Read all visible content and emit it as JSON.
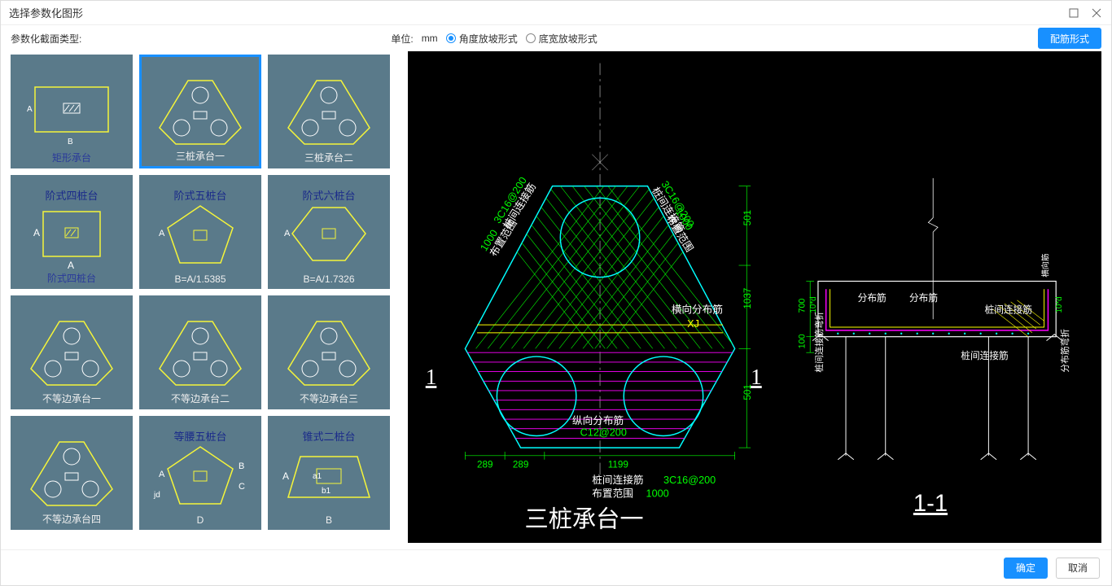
{
  "window": {
    "title": "选择参数化图形"
  },
  "toolbar": {
    "type_label": "参数化截面类型:",
    "unit_label": "单位:",
    "unit_value": "mm",
    "radio_angle": "角度放坡形式",
    "radio_width": "底宽放坡形式",
    "radio_selected": "angle",
    "rebar_button": "配筋形式"
  },
  "thumbnails": [
    {
      "id": "rect",
      "caption": "矩形承台",
      "caption_color": "blue",
      "shape": "rect"
    },
    {
      "id": "tri1",
      "caption": "三桩承台一",
      "caption_color": "white",
      "shape": "tri3",
      "selected": true
    },
    {
      "id": "tri2",
      "caption": "三桩承台二",
      "caption_color": "white",
      "shape": "tri3b"
    },
    {
      "id": "step4",
      "caption": "阶式四桩台",
      "caption_color": "blue",
      "shape": "square",
      "sub": "A",
      "note_top": "阶式四桩台"
    },
    {
      "id": "step5",
      "caption": "B=A/1.5385",
      "caption_color": "white",
      "shape": "pent",
      "note_top": "阶式五桩台"
    },
    {
      "id": "step6",
      "caption": "B=A/1.7326",
      "caption_color": "white",
      "shape": "hex",
      "note_top": "阶式六桩台"
    },
    {
      "id": "uneq1",
      "caption": "不等边承台一",
      "caption_color": "white",
      "shape": "tri3"
    },
    {
      "id": "uneq2",
      "caption": "不等边承台二",
      "caption_color": "white",
      "shape": "tri3b"
    },
    {
      "id": "uneq3",
      "caption": "不等边承台三",
      "caption_color": "white",
      "shape": "tri3b"
    },
    {
      "id": "uneq4",
      "caption": "不等边承台四",
      "caption_color": "white",
      "shape": "tri3"
    },
    {
      "id": "iso5",
      "caption": "D",
      "caption_color": "white",
      "shape": "pent",
      "note_top": "等腰五桩台",
      "side_labels": [
        "B",
        "C"
      ],
      "jd": "jd"
    },
    {
      "id": "cone2",
      "caption": "B",
      "caption_color": "white",
      "shape": "trap",
      "note_top": "锥式二桩台",
      "inner": [
        "a1",
        "b1"
      ],
      "left_A": "A"
    }
  ],
  "preview": {
    "plan": {
      "title": "三桩承台一",
      "section_marks": "1",
      "dims_right": [
        "501",
        "1037",
        "501"
      ],
      "dims_bottom": [
        "289",
        "289",
        "1199"
      ],
      "labels": {
        "pile_conn_left": {
          "t1": "桩间连接筋",
          "t2": "3C16@200",
          "t3": "布置范围",
          "t4": "1000"
        },
        "pile_conn_right": {
          "t1": "桩间连接筋",
          "t2": "3C16@200",
          "t3": "布置范围",
          "t4": "1000"
        },
        "horiz_rebar": "横向分布筋",
        "xj": "XJ",
        "vert_rebar_1": "纵向分布筋",
        "vert_rebar_2": "C12@200",
        "bottom_note_1": "桩间连接筋",
        "bottom_note_2": "3C16@200",
        "bottom_note_3": "布置范围",
        "bottom_note_4": "1000"
      },
      "colors": {
        "outline": "#00ffff",
        "pile": "#00ffff",
        "hatch_green": "#00ff00",
        "hatch_magenta": "#ff00ff",
        "text_white": "#ffffff",
        "text_green": "#00ff00",
        "text_yellow": "#ffff00",
        "guide": "#00ff00"
      }
    },
    "section": {
      "title": "1-1",
      "dims_left": [
        "700",
        "100"
      ],
      "labels": {
        "fbj1": "分布筋",
        "fbj2": "分布筋",
        "pile_conn": "桩间连接筋",
        "pile_conn2": "桩间连接筋",
        "conn_bend": "桩间连接筋弯折",
        "dist_bend": "分布筋弯折",
        "ten_d_1": "10*d",
        "ten_d_2": "10*d",
        "hengxiang": "横向筋"
      },
      "colors": {
        "outline": "#ffffff",
        "rebar_magenta": "#ff00ff",
        "rebar_yellow": "#ffff00",
        "rebar_cyan": "#00ffff",
        "text_green": "#00ff00",
        "text_white": "#ffffff"
      }
    }
  },
  "footer": {
    "ok": "确定",
    "cancel": "取消"
  }
}
